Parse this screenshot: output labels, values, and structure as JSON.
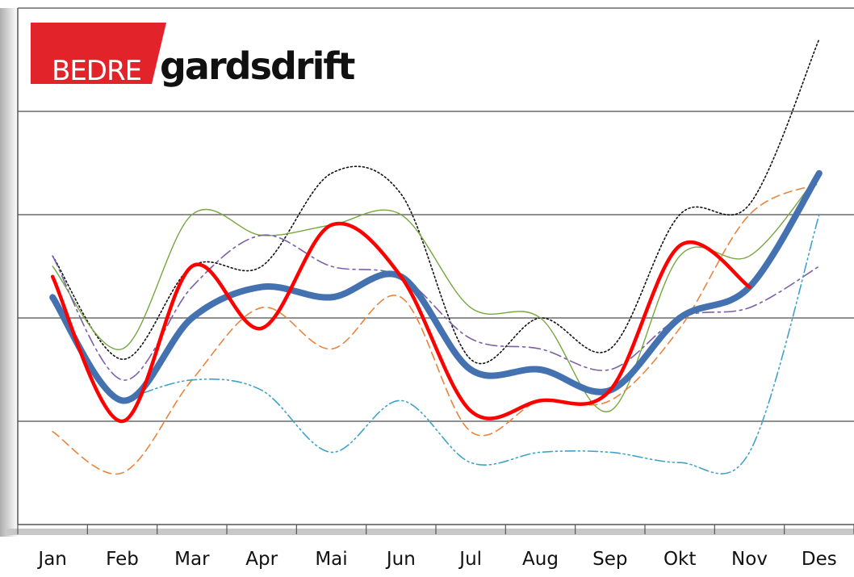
{
  "logo": {
    "part1": "BEDRE",
    "part2": "gardsdrift",
    "red": "#e3232a"
  },
  "chart_data": {
    "type": "line",
    "title": "",
    "xlabel": "",
    "ylabel": "",
    "categories": [
      "Jan",
      "Feb",
      "Mar",
      "Apr",
      "Mai",
      "Jun",
      "Jul",
      "Aug",
      "Sep",
      "Okt",
      "Nov",
      "Des"
    ],
    "ylim": [
      0,
      5
    ],
    "grid": true,
    "series": [
      {
        "name": "black-dotted",
        "color": "#111111",
        "style": "dotted",
        "width": 1.6,
        "values": [
          2.6,
          1.6,
          2.5,
          2.5,
          3.4,
          3.2,
          1.6,
          2.0,
          1.7,
          3.0,
          3.1,
          4.7
        ]
      },
      {
        "name": "green-solid",
        "color": "#77a640",
        "style": "solid",
        "width": 1.4,
        "values": [
          2.5,
          1.7,
          3.0,
          2.8,
          2.9,
          3.0,
          2.1,
          2.0,
          1.1,
          2.6,
          2.6,
          3.4
        ]
      },
      {
        "name": "purple-dashed",
        "color": "#7a5fa8",
        "style": "dashdot",
        "width": 1.6,
        "values": [
          2.6,
          1.4,
          2.3,
          2.8,
          2.5,
          2.4,
          1.8,
          1.7,
          1.5,
          2.0,
          2.1,
          2.5
        ]
      },
      {
        "name": "orange-dashed",
        "color": "#e8843c",
        "style": "dashed",
        "width": 1.6,
        "values": [
          0.9,
          0.5,
          1.4,
          2.1,
          1.7,
          2.2,
          0.9,
          1.2,
          1.2,
          1.9,
          3.0,
          3.3
        ]
      },
      {
        "name": "teal-dashdot",
        "color": "#3fa3c8",
        "style": "dashdotdot",
        "width": 1.6,
        "values": [
          null,
          1.2,
          1.4,
          1.3,
          0.7,
          1.2,
          0.6,
          0.7,
          0.7,
          0.6,
          0.7,
          3.0
        ]
      },
      {
        "name": "blue-thick",
        "color": "#4472b0",
        "style": "solid",
        "width": 8,
        "values": [
          2.2,
          1.2,
          2.0,
          2.3,
          2.2,
          2.4,
          1.5,
          1.5,
          1.3,
          2.0,
          2.3,
          3.4
        ]
      },
      {
        "name": "red-thick",
        "color": "#ff0000",
        "style": "solid",
        "width": 4.5,
        "values": [
          2.4,
          1.0,
          2.5,
          1.9,
          2.9,
          2.4,
          1.1,
          1.2,
          1.3,
          2.7,
          2.3,
          null
        ]
      }
    ]
  }
}
